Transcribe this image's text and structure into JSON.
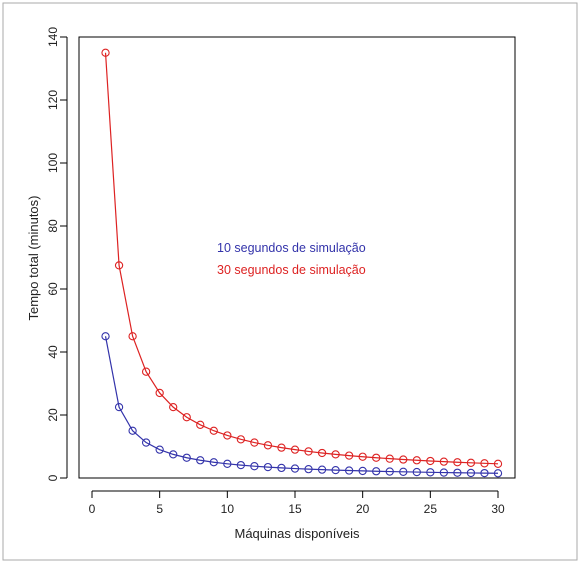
{
  "chart_data": {
    "type": "line",
    "xlabel": "Máquinas disponíveis",
    "ylabel": "Tempo total (minutos)",
    "xlim": [
      0,
      31.2
    ],
    "ylim": [
      0,
      140
    ],
    "x_ticks": [
      0,
      5,
      10,
      15,
      20,
      25,
      30
    ],
    "y_ticks": [
      0,
      20,
      40,
      60,
      80,
      100,
      120,
      140
    ],
    "grid": false,
    "legend_position": "center",
    "x": [
      1,
      2,
      3,
      4,
      5,
      6,
      7,
      8,
      9,
      10,
      11,
      12,
      13,
      14,
      15,
      16,
      17,
      18,
      19,
      20,
      21,
      22,
      23,
      24,
      25,
      26,
      27,
      28,
      29,
      30
    ],
    "series": [
      {
        "name": "10 segundos de simulação",
        "color": "#3333aa",
        "values": [
          45,
          22.5,
          15,
          11.25,
          9,
          7.5,
          6.43,
          5.63,
          5,
          4.5,
          4.09,
          3.75,
          3.46,
          3.21,
          3,
          2.81,
          2.65,
          2.5,
          2.37,
          2.25,
          2.14,
          2.05,
          1.96,
          1.88,
          1.8,
          1.73,
          1.67,
          1.61,
          1.55,
          1.5
        ]
      },
      {
        "name": "30 segundos de simulação",
        "color": "#dd2222",
        "values": [
          135,
          67.5,
          45,
          33.75,
          27,
          22.5,
          19.29,
          16.88,
          15,
          13.5,
          12.27,
          11.25,
          10.38,
          9.64,
          9,
          8.44,
          7.94,
          7.5,
          7.11,
          6.75,
          6.43,
          6.14,
          5.87,
          5.63,
          5.4,
          5.19,
          5,
          4.82,
          4.66,
          4.5
        ]
      }
    ]
  }
}
